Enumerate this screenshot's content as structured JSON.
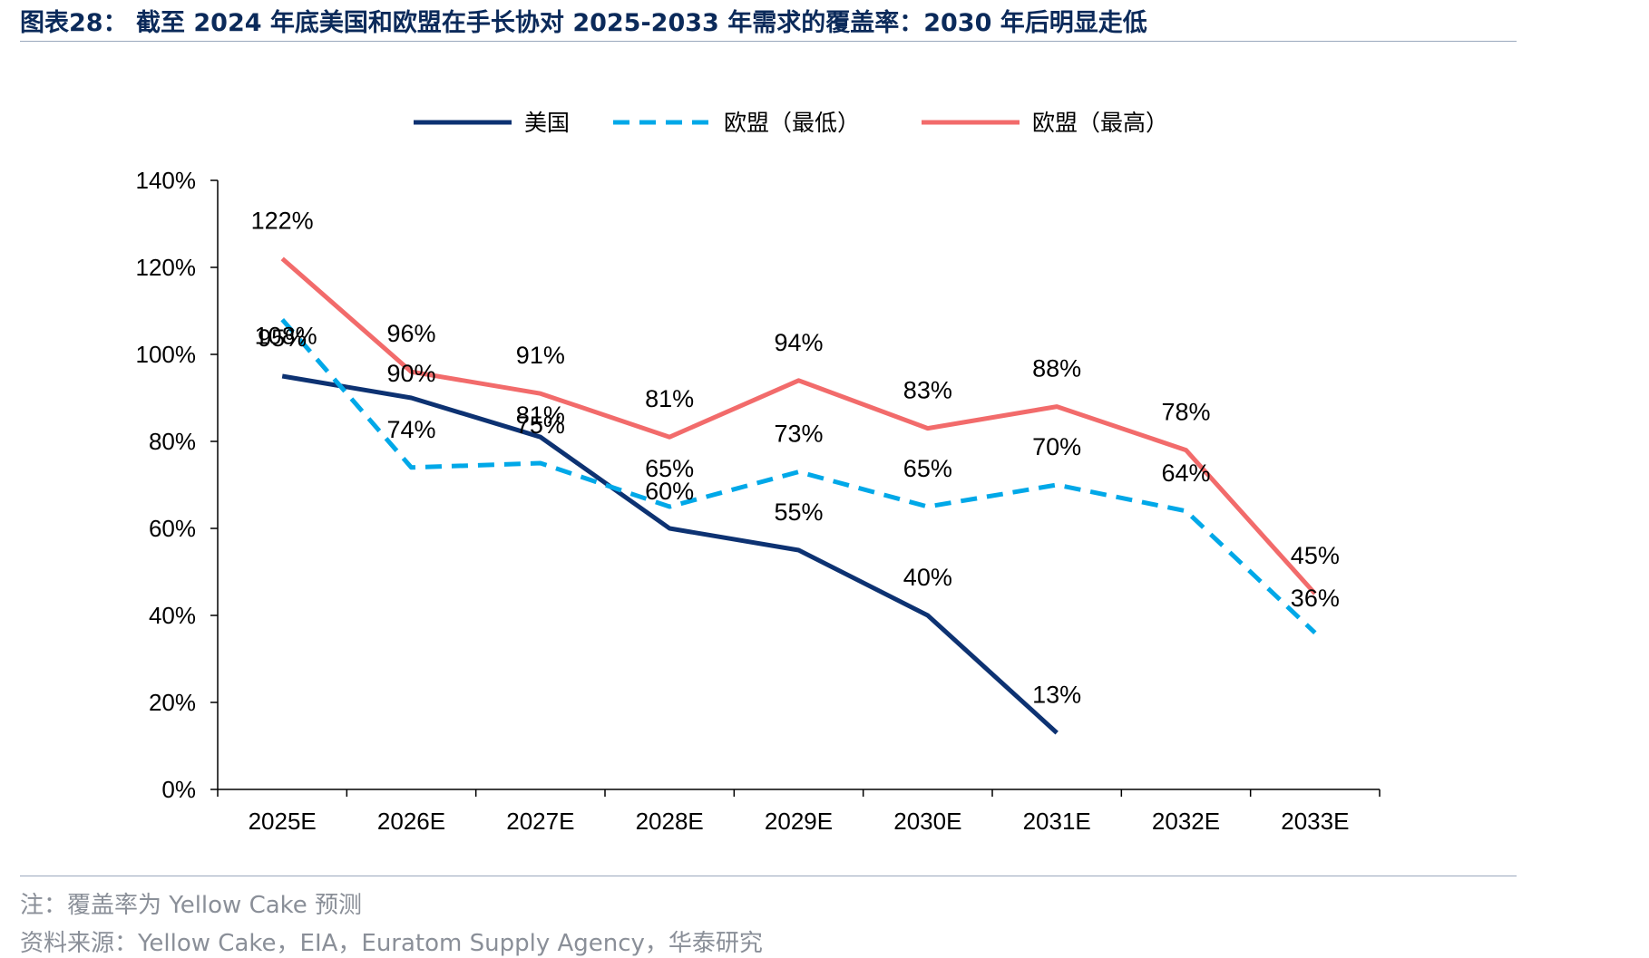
{
  "header": {
    "title": "图表28：  截至 2024 年底美国和欧盟在手长协对 2025-2033 年需求的覆盖率：2030 年后明显走低"
  },
  "footer": {
    "note": "注：覆盖率为 Yellow Cake 预测",
    "source": "资料来源：Yellow Cake，EIA，Euratom Supply Agency，华泰研究"
  },
  "chart_data": {
    "type": "line",
    "title": "",
    "xlabel": "",
    "ylabel": "",
    "categories": [
      "2025E",
      "2026E",
      "2027E",
      "2028E",
      "2029E",
      "2030E",
      "2031E",
      "2032E",
      "2033E"
    ],
    "ylim": [
      0,
      140
    ],
    "yticks": [
      0,
      20,
      40,
      60,
      80,
      100,
      120,
      140
    ],
    "ytick_labels": [
      "0%",
      "20%",
      "40%",
      "60%",
      "80%",
      "100%",
      "120%",
      "140%"
    ],
    "grid": false,
    "legend_position": "top-center",
    "series": [
      {
        "name": "美国",
        "color": "#0d3272",
        "style": "solid",
        "values": [
          95,
          90,
          81,
          60,
          55,
          40,
          13,
          null,
          null
        ],
        "labels": [
          "95%",
          "90%",
          "81%",
          "60%",
          "55%",
          "40%",
          "13%",
          null,
          null
        ]
      },
      {
        "name": "欧盟（最低）",
        "color": "#00a8e8",
        "style": "dashed",
        "values": [
          108,
          74,
          75,
          65,
          73,
          65,
          70,
          64,
          36
        ],
        "labels": [
          "108%",
          "74%",
          "75%",
          "65%",
          "73%",
          "65%",
          "70%",
          "64%",
          "36%"
        ]
      },
      {
        "name": "欧盟（最高）",
        "color": "#f26b6b",
        "style": "solid",
        "values": [
          122,
          96,
          91,
          81,
          94,
          83,
          88,
          78,
          45
        ],
        "labels": [
          "122%",
          "96%",
          "91%",
          "81%",
          "94%",
          "83%",
          "88%",
          "78%",
          "45%"
        ]
      }
    ]
  }
}
